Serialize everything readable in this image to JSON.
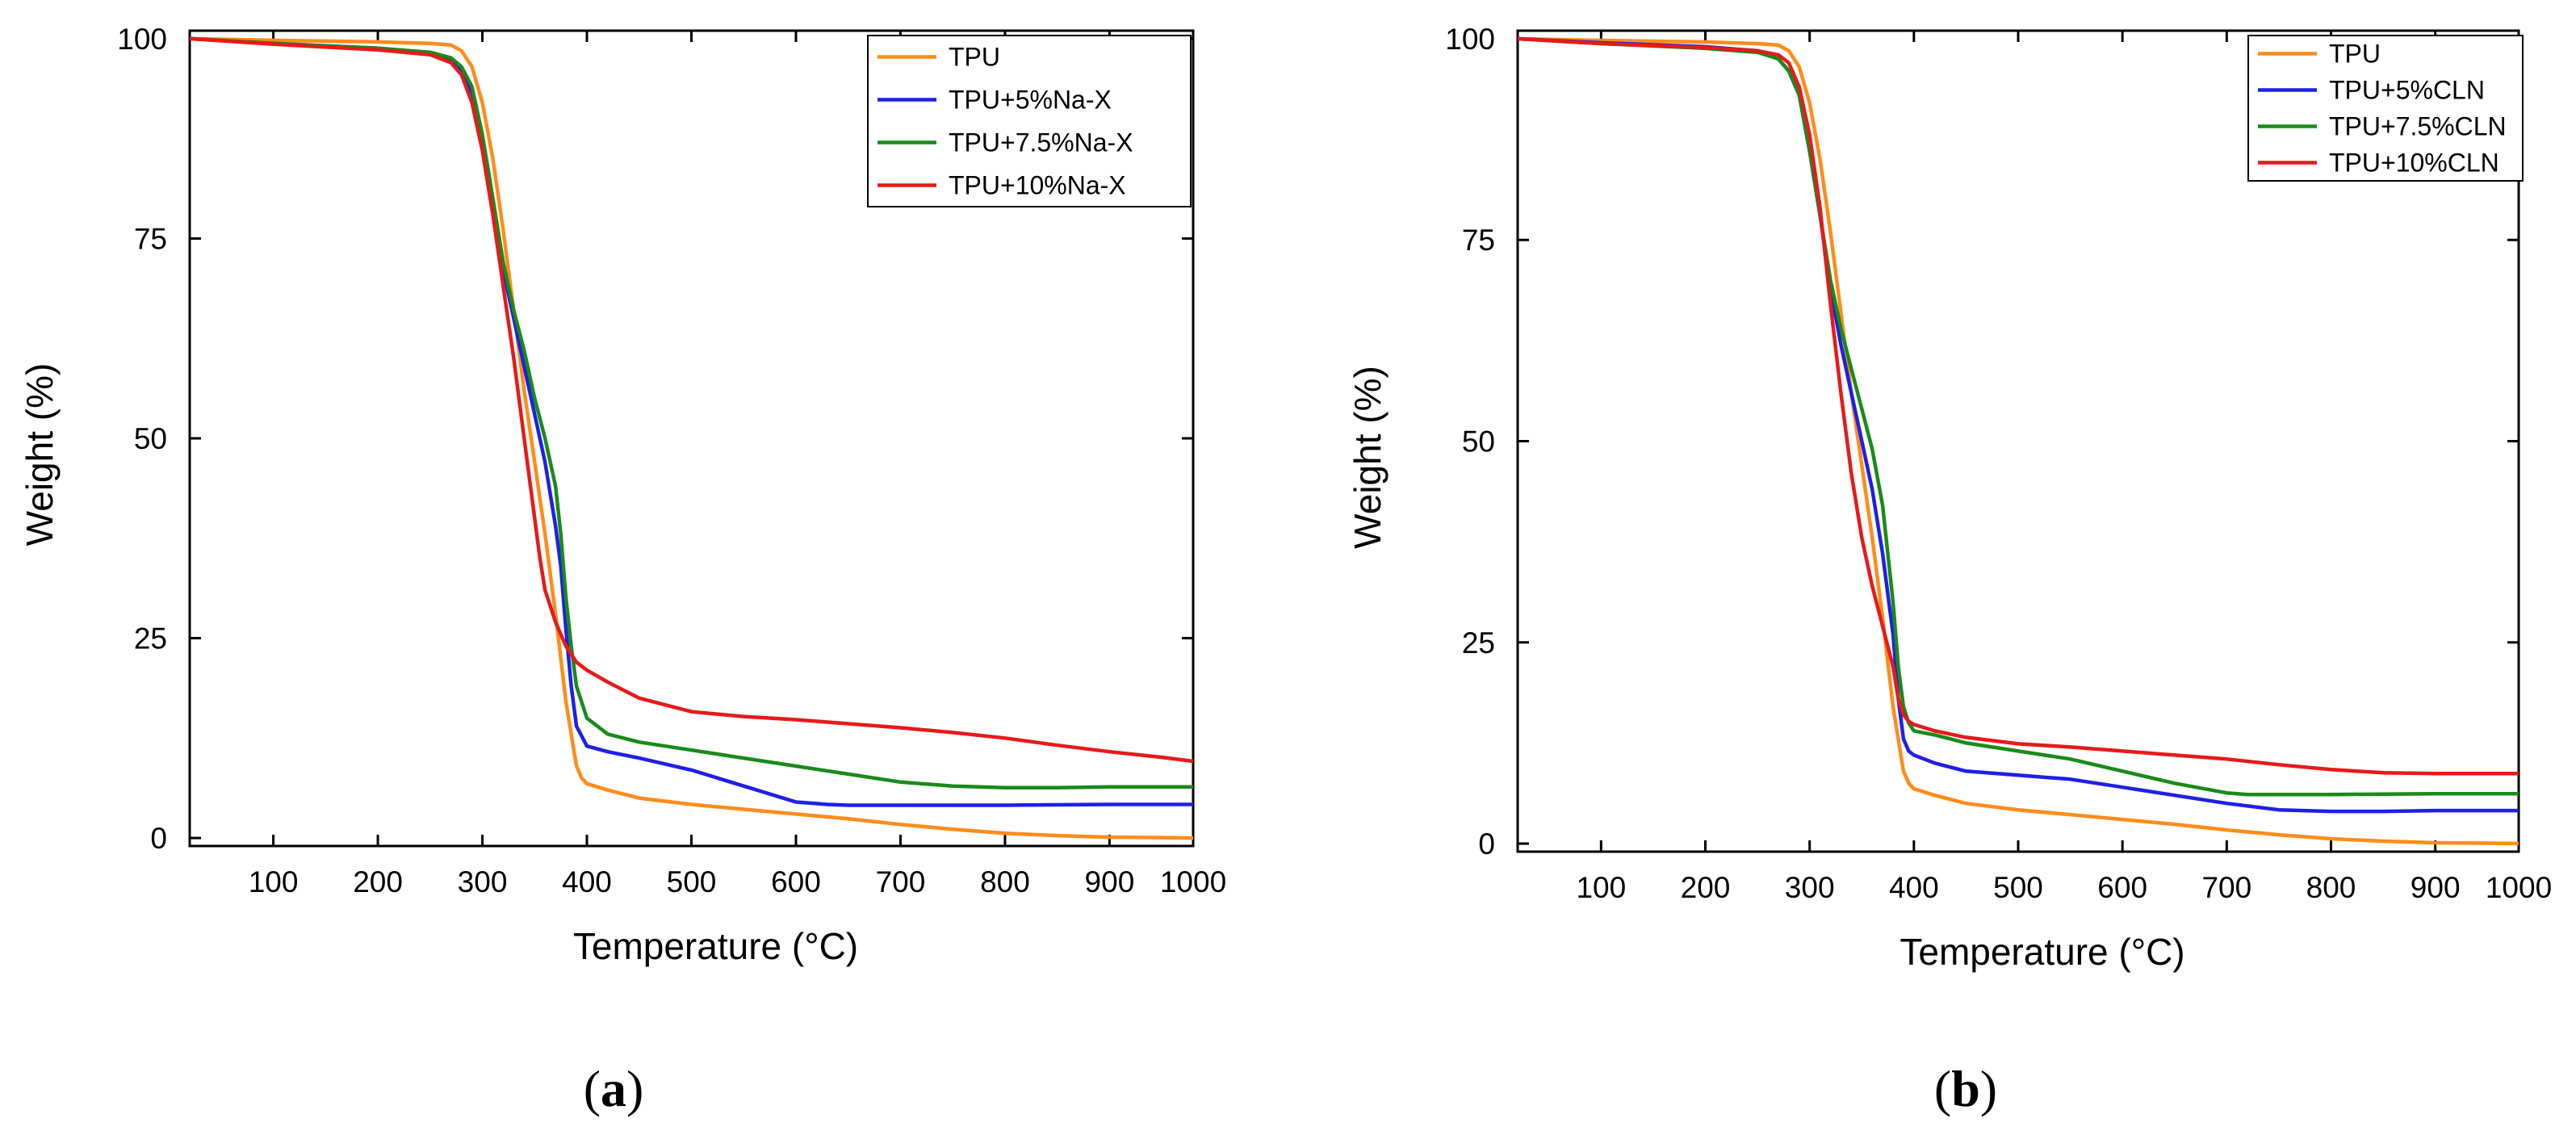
{
  "chart_data": [
    {
      "type": "line",
      "panel_label": "(a)",
      "panel_letter": "a",
      "xlabel": "Temperature (°C)",
      "ylabel": "Weight (%)",
      "xlim": [
        20,
        980
      ],
      "ylim": [
        -1,
        101
      ],
      "xticks": [
        100,
        200,
        300,
        400,
        500,
        600,
        700,
        800,
        900,
        1000
      ],
      "yticks": [
        0,
        25,
        50,
        75,
        100
      ],
      "legend_position": "top-right",
      "series": [
        {
          "name": "TPU",
          "color": "#ff8c1a",
          "x": [
            20,
            100,
            200,
            250,
            270,
            280,
            290,
            300,
            310,
            320,
            330,
            340,
            350,
            360,
            370,
            380,
            390,
            395,
            400,
            420,
            450,
            500,
            550,
            600,
            650,
            700,
            750,
            800,
            850,
            900,
            950,
            980
          ],
          "y": [
            100,
            99.8,
            99.6,
            99.4,
            99.2,
            98.5,
            96.5,
            92,
            85,
            76,
            66,
            56,
            47,
            38,
            28,
            17,
            9,
            7.5,
            6.8,
            6,
            5,
            4.2,
            3.6,
            3,
            2.4,
            1.7,
            1.1,
            0.6,
            0.3,
            0.1,
            0.05,
            0
          ]
        },
        {
          "name": "TPU+5%Na-X",
          "color": "#1f1fe6",
          "x": [
            20,
            100,
            200,
            250,
            270,
            280,
            290,
            300,
            310,
            320,
            330,
            340,
            350,
            360,
            370,
            375,
            380,
            385,
            390,
            400,
            420,
            450,
            500,
            550,
            600,
            630,
            650,
            700,
            750,
            800,
            900,
            980
          ],
          "y": [
            100,
            99.4,
            98.8,
            98.2,
            97.2,
            96,
            93,
            87,
            79,
            71,
            65,
            59,
            53,
            47,
            39,
            34,
            26,
            19,
            14,
            11.5,
            10.8,
            10,
            8.5,
            6.5,
            4.5,
            4.2,
            4.1,
            4.1,
            4.1,
            4.1,
            4.2,
            4.2
          ]
        },
        {
          "name": "TPU+7.5%Na-X",
          "color": "#1a8a1a",
          "x": [
            20,
            100,
            200,
            250,
            270,
            280,
            290,
            300,
            310,
            320,
            330,
            340,
            350,
            360,
            370,
            375,
            380,
            385,
            390,
            400,
            420,
            450,
            500,
            550,
            600,
            650,
            700,
            750,
            800,
            850,
            900,
            980
          ],
          "y": [
            100,
            99.4,
            98.8,
            98.3,
            97.6,
            96.5,
            94,
            88,
            80,
            72,
            66,
            61,
            55,
            50,
            44,
            38,
            30,
            24,
            19,
            15,
            13,
            12,
            11,
            10,
            9,
            8,
            7,
            6.5,
            6.3,
            6.3,
            6.4,
            6.4
          ]
        },
        {
          "name": "TPU+10%Na-X",
          "color": "#e61a1a",
          "x": [
            20,
            100,
            200,
            250,
            270,
            280,
            290,
            300,
            310,
            320,
            330,
            340,
            350,
            355,
            360,
            370,
            380,
            390,
            400,
            420,
            450,
            500,
            550,
            600,
            650,
            700,
            750,
            800,
            850,
            900,
            950,
            980
          ],
          "y": [
            100,
            99.3,
            98.6,
            98,
            97,
            95.5,
            92,
            86,
            78,
            69,
            60,
            50,
            40,
            35,
            31,
            27,
            24,
            22,
            21,
            19.5,
            17.5,
            15.8,
            15.2,
            14.8,
            14.3,
            13.8,
            13.2,
            12.5,
            11.6,
            10.8,
            10.1,
            9.6
          ]
        }
      ]
    },
    {
      "type": "line",
      "panel_label": "(b)",
      "panel_letter": "b",
      "xlabel": "Temperature (°C)",
      "ylabel": "Weight (%)",
      "xlim": [
        20,
        980
      ],
      "ylim": [
        -1,
        101
      ],
      "xticks": [
        100,
        200,
        300,
        400,
        500,
        600,
        700,
        800,
        900,
        1000
      ],
      "yticks": [
        0,
        25,
        50,
        75,
        100
      ],
      "legend_position": "top-right",
      "series": [
        {
          "name": "TPU",
          "color": "#ff8c1a",
          "x": [
            20,
            100,
            200,
            250,
            270,
            280,
            290,
            300,
            310,
            320,
            330,
            340,
            350,
            360,
            370,
            380,
            390,
            395,
            400,
            420,
            450,
            500,
            550,
            600,
            650,
            700,
            750,
            800,
            850,
            900,
            950,
            980
          ],
          "y": [
            100,
            99.8,
            99.6,
            99.4,
            99.2,
            98.5,
            96.5,
            92,
            85,
            76,
            66,
            56,
            47,
            38,
            28,
            17,
            9,
            7.5,
            6.8,
            6,
            5,
            4.2,
            3.6,
            3,
            2.4,
            1.7,
            1.1,
            0.6,
            0.3,
            0.1,
            0.05,
            0
          ]
        },
        {
          "name": "TPU+5%CLN",
          "color": "#1f1fe6",
          "x": [
            20,
            100,
            200,
            250,
            270,
            280,
            290,
            300,
            310,
            320,
            330,
            340,
            350,
            360,
            370,
            380,
            385,
            390,
            395,
            400,
            420,
            450,
            500,
            550,
            600,
            650,
            700,
            750,
            800,
            850,
            900,
            980
          ],
          "y": [
            100,
            99.5,
            99,
            98.5,
            97.5,
            96,
            93,
            86,
            78,
            69,
            62,
            56,
            50,
            44,
            36,
            26,
            18,
            13,
            11.5,
            11,
            10,
            9,
            8.5,
            8,
            7,
            6,
            5,
            4.2,
            4,
            4,
            4.1,
            4.1
          ]
        },
        {
          "name": "TPU+7.5%CLN",
          "color": "#1a8a1a",
          "x": [
            20,
            100,
            200,
            250,
            270,
            280,
            290,
            300,
            310,
            320,
            330,
            340,
            350,
            360,
            370,
            380,
            385,
            390,
            395,
            400,
            420,
            450,
            500,
            550,
            600,
            650,
            700,
            720,
            750,
            800,
            900,
            980
          ],
          "y": [
            100,
            99.4,
            98.8,
            98.3,
            97.5,
            96,
            93,
            86,
            78,
            70,
            64,
            59,
            54,
            49,
            42,
            30,
            22,
            17,
            15,
            14,
            13.5,
            12.5,
            11.5,
            10.5,
            9,
            7.5,
            6.3,
            6.1,
            6.1,
            6.1,
            6.2,
            6.2
          ]
        },
        {
          "name": "TPU+10%CLN",
          "color": "#e61a1a",
          "x": [
            20,
            100,
            200,
            250,
            270,
            280,
            290,
            300,
            310,
            320,
            330,
            340,
            350,
            360,
            370,
            380,
            385,
            390,
            395,
            400,
            420,
            450,
            500,
            550,
            600,
            650,
            700,
            750,
            800,
            850,
            900,
            980
          ],
          "y": [
            100,
            99.4,
            98.9,
            98.5,
            98,
            97,
            94,
            88,
            79,
            67,
            56,
            46,
            38,
            32,
            27,
            22,
            18,
            16,
            15.2,
            14.8,
            14,
            13.2,
            12.4,
            12,
            11.5,
            11,
            10.5,
            9.8,
            9.2,
            8.8,
            8.7,
            8.7
          ]
        }
      ]
    }
  ]
}
